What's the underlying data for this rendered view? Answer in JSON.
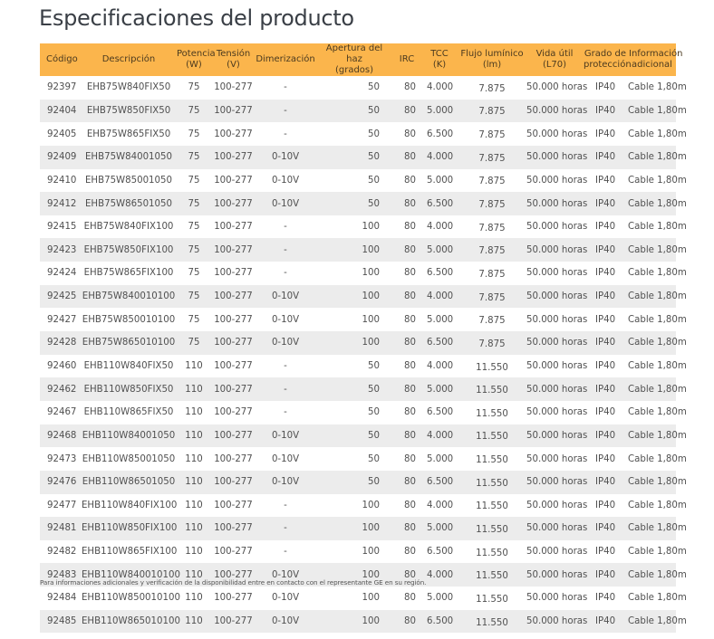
{
  "page": {
    "title": "Especificaciones del producto",
    "footnote": "Para informaciones adicionales y verificación de la disponibilidad entre en contacto con el representante GE en su región."
  },
  "colors": {
    "header_bg": "#fbb54c",
    "stripe_bg": "#ececec",
    "text": "#505050"
  },
  "table": {
    "headers": {
      "codigo": "Código",
      "descripcion": "Descripción",
      "potencia_1": "Potencia",
      "potencia_2": "(W)",
      "tension_1": "Tensión",
      "tension_2": "(V)",
      "dimerizacion": "Dimerización",
      "apertura_1": "Apertura del haz",
      "apertura_2": "(grados)",
      "irc": "IRC",
      "tcc_1": "TCC",
      "tcc_2": "(K)",
      "flujo_1": "Flujo lumínico",
      "flujo_2": "(lm)",
      "vida_1": "Vida útil",
      "vida_2": "(L70)",
      "grado_1": "Grado de",
      "grado_2": "protección",
      "info_1": "Información",
      "info_2": "adicional"
    },
    "rows": [
      {
        "codigo": "92397",
        "descripcion": "EHB75W840FIX50",
        "potencia": "75",
        "tension": "100-277",
        "dimerizacion": "-",
        "apertura": "50",
        "irc": "80",
        "tcc": "4.000",
        "flujo": "7.875",
        "vida": "50.000 horas",
        "grado": "IP40",
        "info": "Cable 1,80m"
      },
      {
        "codigo": "92404",
        "descripcion": "EHB75W850FIX50",
        "potencia": "75",
        "tension": "100-277",
        "dimerizacion": "-",
        "apertura": "50",
        "irc": "80",
        "tcc": "5.000",
        "flujo": "7.875",
        "vida": "50.000 horas",
        "grado": "IP40",
        "info": "Cable 1,80m"
      },
      {
        "codigo": "92405",
        "descripcion": "EHB75W865FIX50",
        "potencia": "75",
        "tension": "100-277",
        "dimerizacion": "-",
        "apertura": "50",
        "irc": "80",
        "tcc": "6.500",
        "flujo": "7.875",
        "vida": "50.000 horas",
        "grado": "IP40",
        "info": "Cable 1,80m"
      },
      {
        "codigo": "92409",
        "descripcion": "EHB75W84001050",
        "potencia": "75",
        "tension": "100-277",
        "dimerizacion": "0-10V",
        "apertura": "50",
        "irc": "80",
        "tcc": "4.000",
        "flujo": "7.875",
        "vida": "50.000 horas",
        "grado": "IP40",
        "info": "Cable 1,80m"
      },
      {
        "codigo": "92410",
        "descripcion": "EHB75W85001050",
        "potencia": "75",
        "tension": "100-277",
        "dimerizacion": "0-10V",
        "apertura": "50",
        "irc": "80",
        "tcc": "5.000",
        "flujo": "7.875",
        "vida": "50.000 horas",
        "grado": "IP40",
        "info": "Cable 1,80m"
      },
      {
        "codigo": "92412",
        "descripcion": "EHB75W86501050",
        "potencia": "75",
        "tension": "100-277",
        "dimerizacion": "0-10V",
        "apertura": "50",
        "irc": "80",
        "tcc": "6.500",
        "flujo": "7.875",
        "vida": "50.000 horas",
        "grado": "IP40",
        "info": "Cable 1,80m"
      },
      {
        "codigo": "92415",
        "descripcion": "EHB75W840FIX100",
        "potencia": "75",
        "tension": "100-277",
        "dimerizacion": "-",
        "apertura": "100",
        "irc": "80",
        "tcc": "4.000",
        "flujo": "7.875",
        "vida": "50.000 horas",
        "grado": "IP40",
        "info": "Cable 1,80m"
      },
      {
        "codigo": "92423",
        "descripcion": "EHB75W850FIX100",
        "potencia": "75",
        "tension": "100-277",
        "dimerizacion": "-",
        "apertura": "100",
        "irc": "80",
        "tcc": "5.000",
        "flujo": "7.875",
        "vida": "50.000 horas",
        "grado": "IP40",
        "info": "Cable 1,80m"
      },
      {
        "codigo": "92424",
        "descripcion": "EHB75W865FIX100",
        "potencia": "75",
        "tension": "100-277",
        "dimerizacion": "-",
        "apertura": "100",
        "irc": "80",
        "tcc": "6.500",
        "flujo": "7.875",
        "vida": "50.000 horas",
        "grado": "IP40",
        "info": "Cable 1,80m"
      },
      {
        "codigo": "92425",
        "descripcion": "EHB75W840010100",
        "potencia": "75",
        "tension": "100-277",
        "dimerizacion": "0-10V",
        "apertura": "100",
        "irc": "80",
        "tcc": "4.000",
        "flujo": "7.875",
        "vida": "50.000 horas",
        "grado": "IP40",
        "info": "Cable 1,80m"
      },
      {
        "codigo": "92427",
        "descripcion": "EHB75W850010100",
        "potencia": "75",
        "tension": "100-277",
        "dimerizacion": "0-10V",
        "apertura": "100",
        "irc": "80",
        "tcc": "5.000",
        "flujo": "7.875",
        "vida": "50.000 horas",
        "grado": "IP40",
        "info": "Cable 1,80m"
      },
      {
        "codigo": "92428",
        "descripcion": "EHB75W865010100",
        "potencia": "75",
        "tension": "100-277",
        "dimerizacion": "0-10V",
        "apertura": "100",
        "irc": "80",
        "tcc": "6.500",
        "flujo": "7.875",
        "vida": "50.000 horas",
        "grado": "IP40",
        "info": "Cable 1,80m"
      },
      {
        "codigo": "92460",
        "descripcion": "EHB110W840FIX50",
        "potencia": "110",
        "tension": "100-277",
        "dimerizacion": "-",
        "apertura": "50",
        "irc": "80",
        "tcc": "4.000",
        "flujo": "11.550",
        "vida": "50.000 horas",
        "grado": "IP40",
        "info": "Cable 1,80m"
      },
      {
        "codigo": "92462",
        "descripcion": "EHB110W850FIX50",
        "potencia": "110",
        "tension": "100-277",
        "dimerizacion": "-",
        "apertura": "50",
        "irc": "80",
        "tcc": "5.000",
        "flujo": "11.550",
        "vida": "50.000 horas",
        "grado": "IP40",
        "info": "Cable 1,80m"
      },
      {
        "codigo": "92467",
        "descripcion": "EHB110W865FIX50",
        "potencia": "110",
        "tension": "100-277",
        "dimerizacion": "-",
        "apertura": "50",
        "irc": "80",
        "tcc": "6.500",
        "flujo": "11.550",
        "vida": "50.000 horas",
        "grado": "IP40",
        "info": "Cable 1,80m"
      },
      {
        "codigo": "92468",
        "descripcion": "EHB110W84001050",
        "potencia": "110",
        "tension": "100-277",
        "dimerizacion": "0-10V",
        "apertura": "50",
        "irc": "80",
        "tcc": "4.000",
        "flujo": "11.550",
        "vida": "50.000 horas",
        "grado": "IP40",
        "info": "Cable 1,80m"
      },
      {
        "codigo": "92473",
        "descripcion": "EHB110W85001050",
        "potencia": "110",
        "tension": "100-277",
        "dimerizacion": "0-10V",
        "apertura": "50",
        "irc": "80",
        "tcc": "5.000",
        "flujo": "11.550",
        "vida": "50.000 horas",
        "grado": "IP40",
        "info": "Cable 1,80m"
      },
      {
        "codigo": "92476",
        "descripcion": "EHB110W86501050",
        "potencia": "110",
        "tension": "100-277",
        "dimerizacion": "0-10V",
        "apertura": "50",
        "irc": "80",
        "tcc": "6.500",
        "flujo": "11.550",
        "vida": "50.000 horas",
        "grado": "IP40",
        "info": "Cable 1,80m"
      },
      {
        "codigo": "92477",
        "descripcion": "EHB110W840FIX100",
        "potencia": "110",
        "tension": "100-277",
        "dimerizacion": "-",
        "apertura": "100",
        "irc": "80",
        "tcc": "4.000",
        "flujo": "11.550",
        "vida": "50.000 horas",
        "grado": "IP40",
        "info": "Cable 1,80m"
      },
      {
        "codigo": "92481",
        "descripcion": "EHB110W850FIX100",
        "potencia": "110",
        "tension": "100-277",
        "dimerizacion": "-",
        "apertura": "100",
        "irc": "80",
        "tcc": "5.000",
        "flujo": "11.550",
        "vida": "50.000 horas",
        "grado": "IP40",
        "info": "Cable 1,80m"
      },
      {
        "codigo": "92482",
        "descripcion": "EHB110W865FIX100",
        "potencia": "110",
        "tension": "100-277",
        "dimerizacion": "-",
        "apertura": "100",
        "irc": "80",
        "tcc": "6.500",
        "flujo": "11.550",
        "vida": "50.000 horas",
        "grado": "IP40",
        "info": "Cable 1,80m"
      },
      {
        "codigo": "92483",
        "descripcion": "EHB110W840010100",
        "potencia": "110",
        "tension": "100-277",
        "dimerizacion": "0-10V",
        "apertura": "100",
        "irc": "80",
        "tcc": "4.000",
        "flujo": "11.550",
        "vida": "50.000 horas",
        "grado": "IP40",
        "info": "Cable 1,80m"
      },
      {
        "codigo": "92484",
        "descripcion": "EHB110W850010100",
        "potencia": "110",
        "tension": "100-277",
        "dimerizacion": "0-10V",
        "apertura": "100",
        "irc": "80",
        "tcc": "5.000",
        "flujo": "11.550",
        "vida": "50.000 horas",
        "grado": "IP40",
        "info": "Cable 1,80m"
      },
      {
        "codigo": "92485",
        "descripcion": "EHB110W865010100",
        "potencia": "110",
        "tension": "100-277",
        "dimerizacion": "0-10V",
        "apertura": "100",
        "irc": "80",
        "tcc": "6.500",
        "flujo": "11.550",
        "vida": "50.000 horas",
        "grado": "IP40",
        "info": "Cable 1,80m"
      }
    ]
  }
}
